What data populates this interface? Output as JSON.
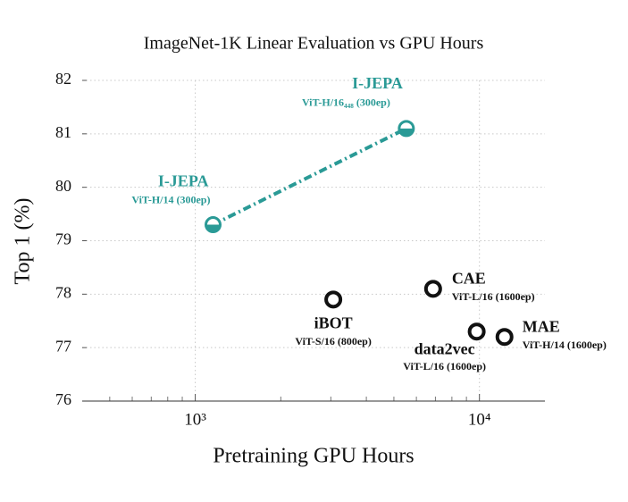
{
  "chart_data": {
    "type": "scatter",
    "title": "ImageNet-1K Linear Evaluation vs GPU Hours",
    "xlabel": "Pretraining GPU Hours",
    "ylabel": "Top 1 (%)",
    "xscale": "log",
    "xlim": [
      400,
      17000
    ],
    "ylim": [
      76,
      82
    ],
    "xticks": [
      {
        "value": 1000,
        "label": "10³"
      },
      {
        "value": 10000,
        "label": "10⁴"
      }
    ],
    "xminor_ticks": [
      500,
      600,
      700,
      800,
      900,
      2000,
      3000,
      4000,
      5000,
      6000,
      7000,
      8000,
      9000
    ],
    "yticks": [
      76,
      77,
      78,
      79,
      80,
      81,
      82
    ],
    "grid": true,
    "series": [
      {
        "name": "I-JEPA",
        "color": "#2a9a96",
        "connected": true,
        "x": [
          1155,
          5530
        ],
        "values": [
          79.3,
          81.1
        ],
        "details": [
          "ViT-H/14 (300ep)",
          "ViT-H/16₄₄₈ (300ep)"
        ]
      },
      {
        "name": "iBOT",
        "color": "#111111",
        "x": [
          3060
        ],
        "values": [
          77.9
        ],
        "details": [
          "ViT-S/16 (800ep)"
        ]
      },
      {
        "name": "CAE",
        "color": "#111111",
        "x": [
          6870
        ],
        "values": [
          78.1
        ],
        "details": [
          "ViT-L/16 (1600ep)"
        ]
      },
      {
        "name": "data2vec",
        "color": "#111111",
        "x": [
          9780
        ],
        "values": [
          77.3
        ],
        "details": [
          "ViT-L/16 (1600ep)"
        ]
      },
      {
        "name": "MAE",
        "color": "#111111",
        "x": [
          12250
        ],
        "values": [
          77.2
        ],
        "details": [
          "ViT-H/14 (1600ep)"
        ]
      }
    ]
  }
}
